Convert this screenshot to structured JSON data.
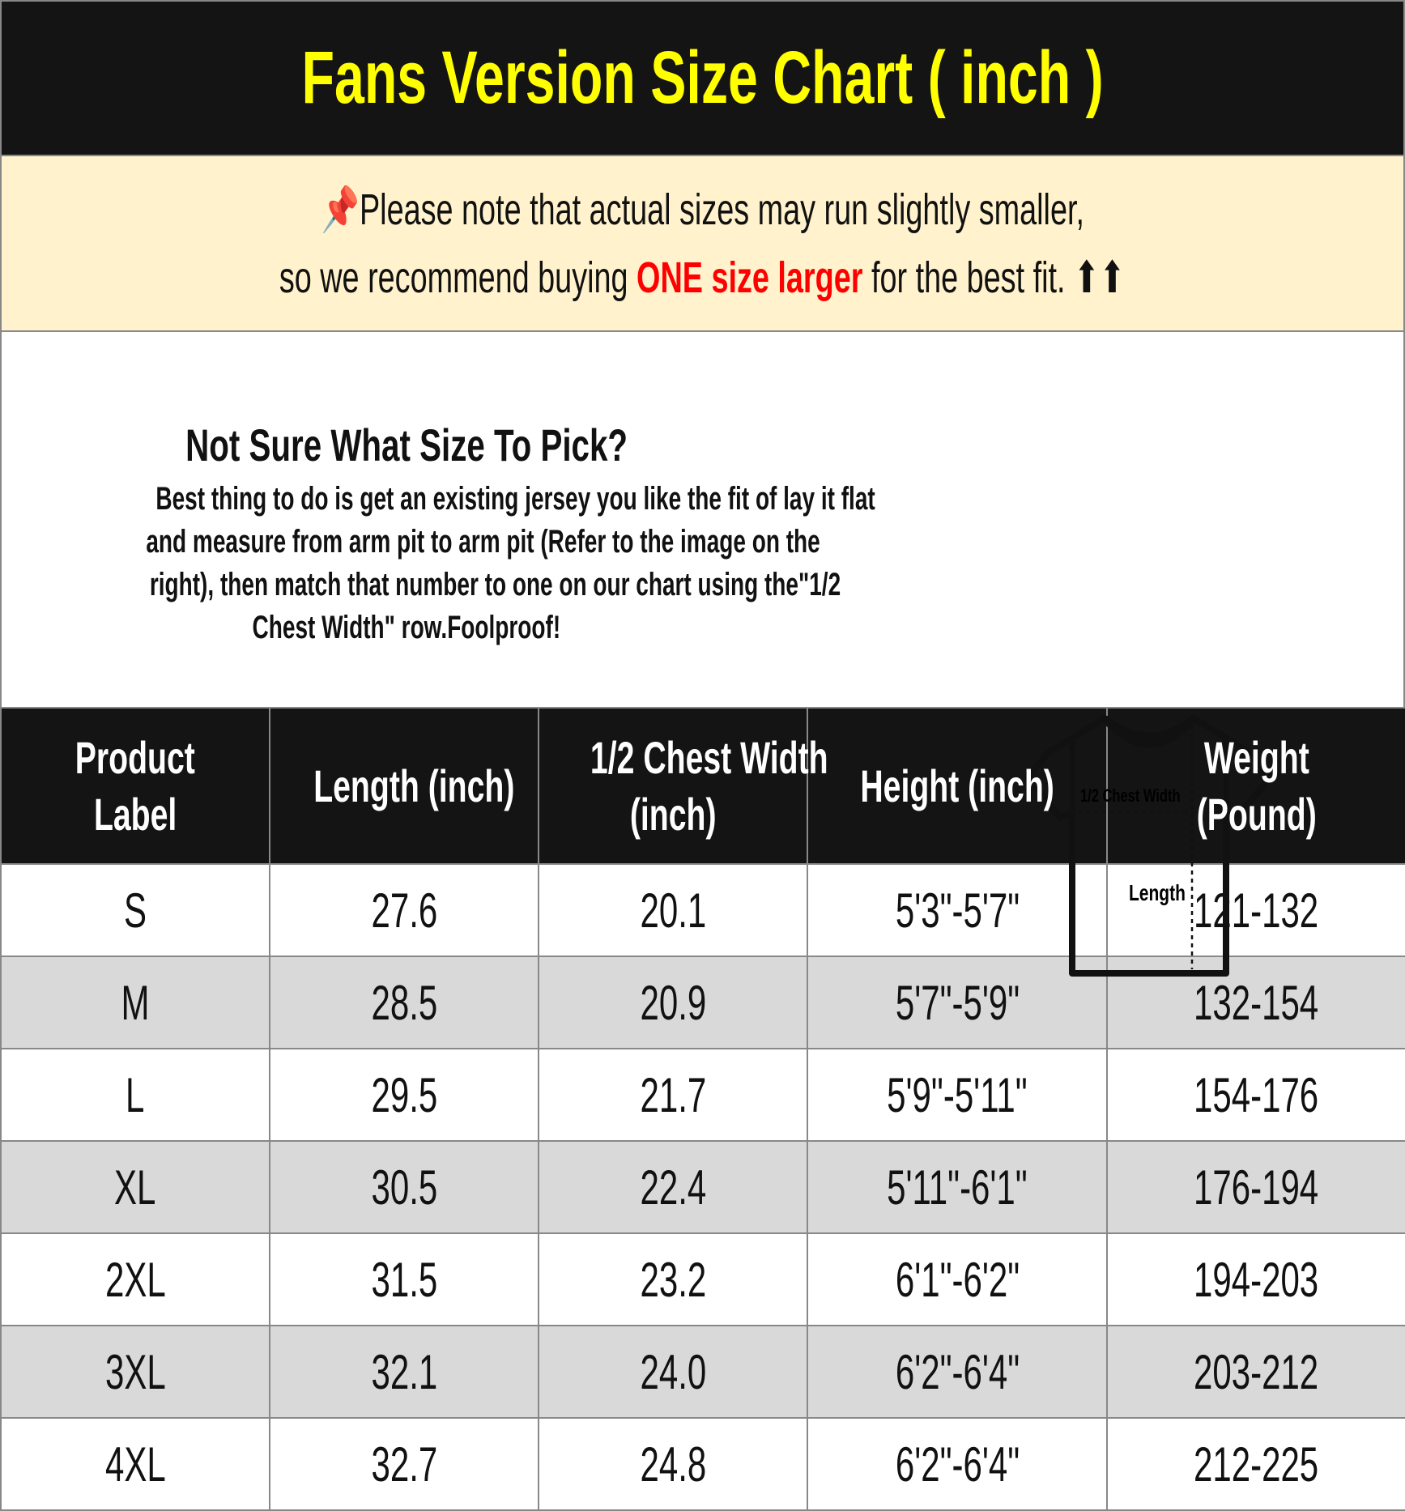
{
  "title": "Fans Version Size Chart ( inch )",
  "note": {
    "line1": "Please note that actual sizes may run slightly smaller,",
    "line2_pre": "so we recommend buying ",
    "line2_highlight": "ONE size larger",
    "line2_post": " for the best fit. ⬆⬆",
    "icon": "pushpin-icon",
    "highlight_color": "#ff0000"
  },
  "info": {
    "heading": "Not Sure What Size To Pick?",
    "lines": [
      "Best thing to do is get an existing jersey you like the fit of lay it flat",
      "and measure from arm pit to arm pit (Refer to the image on the",
      "right), then match that number to one on our chart using the\"1/2",
      "Chest Width\" row.Foolproof!"
    ],
    "diagram": {
      "chest_label": "1/2 Chest Width",
      "length_label": "Length"
    }
  },
  "table": {
    "headers": [
      [
        "Product",
        "Label"
      ],
      [
        "Length (inch)"
      ],
      [
        "1/2 Chest Width",
        "(inch)"
      ],
      [
        "Height (inch)"
      ],
      [
        "Weight",
        "(Pound)"
      ]
    ],
    "rows": [
      [
        "S",
        "27.6",
        "20.1",
        "5'3\"-5'7\"",
        "121-132"
      ],
      [
        "M",
        "28.5",
        "20.9",
        "5'7\"-5'9\"",
        "132-154"
      ],
      [
        "L",
        "29.5",
        "21.7",
        "5'9\"-5'11\"",
        "154-176"
      ],
      [
        "XL",
        "30.5",
        "22.4",
        "5'11\"-6'1\"",
        "176-194"
      ],
      [
        "2XL",
        "31.5",
        "23.2",
        "6'1\"-6'2\"",
        "194-203"
      ],
      [
        "3XL",
        "32.1",
        "24.0",
        "6'2\"-6'4\"",
        "203-212"
      ],
      [
        "4XL",
        "32.7",
        "24.8",
        "6'2\"-6'4\"",
        "212-225"
      ]
    ]
  },
  "colors": {
    "title_bg": "#141414",
    "title_text": "#ffff00",
    "note_bg": "#fff2cc",
    "alt_row": "#d9d9d9"
  }
}
